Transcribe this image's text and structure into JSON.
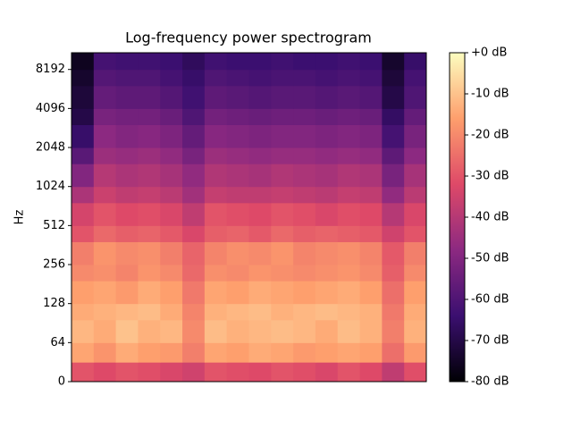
{
  "chart_data": {
    "type": "spectrogram",
    "title": "Log-frequency power spectrogram",
    "y_label": "Hz",
    "yscale": "symlog",
    "linthresh": 64,
    "ylim": [
      0,
      11025
    ],
    "yticks": [
      0,
      64,
      128,
      256,
      512,
      1024,
      2048,
      4096,
      8192
    ],
    "y_bins": [
      0,
      32,
      64,
      96,
      128,
      192,
      256,
      384,
      512,
      768,
      1024,
      1536,
      2048,
      3072,
      4096,
      6144,
      8192,
      11025
    ],
    "z": [
      [
        -30,
        -32,
        -30,
        -31,
        -33,
        -35,
        -30,
        -31,
        -32,
        -30,
        -31,
        -33,
        -30,
        -32,
        -38,
        -31
      ],
      [
        -15,
        -18,
        -14,
        -16,
        -17,
        -22,
        -15,
        -16,
        -14,
        -15,
        -17,
        -16,
        -15,
        -16,
        -25,
        -17
      ],
      [
        -12,
        -14,
        -10,
        -13,
        -12,
        -20,
        -11,
        -13,
        -12,
        -11,
        -12,
        -14,
        -11,
        -13,
        -22,
        -13
      ],
      [
        -14,
        -13,
        -12,
        -11,
        -14,
        -21,
        -13,
        -12,
        -11,
        -13,
        -12,
        -11,
        -12,
        -13,
        -23,
        -14
      ],
      [
        -16,
        -15,
        -17,
        -14,
        -16,
        -23,
        -15,
        -16,
        -14,
        -15,
        -16,
        -15,
        -14,
        -16,
        -25,
        -16
      ],
      [
        -20,
        -19,
        -21,
        -18,
        -20,
        -26,
        -19,
        -20,
        -18,
        -19,
        -20,
        -19,
        -18,
        -20,
        -28,
        -20
      ],
      [
        -22,
        -18,
        -20,
        -19,
        -22,
        -27,
        -21,
        -19,
        -20,
        -18,
        -21,
        -20,
        -19,
        -21,
        -29,
        -22
      ],
      [
        -30,
        -26,
        -28,
        -27,
        -29,
        -33,
        -28,
        -27,
        -29,
        -26,
        -28,
        -27,
        -28,
        -29,
        -35,
        -30
      ],
      [
        -34,
        -30,
        -32,
        -31,
        -33,
        -38,
        -30,
        -31,
        -32,
        -30,
        -31,
        -33,
        -31,
        -32,
        -40,
        -33
      ],
      [
        -42,
        -36,
        -38,
        -37,
        -39,
        -44,
        -37,
        -38,
        -38,
        -37,
        -38,
        -39,
        -37,
        -38,
        -47,
        -39
      ],
      [
        -50,
        -40,
        -42,
        -41,
        -43,
        -47,
        -41,
        -42,
        -43,
        -41,
        -42,
        -43,
        -41,
        -42,
        -52,
        -43
      ],
      [
        -58,
        -45,
        -46,
        -45,
        -47,
        -52,
        -45,
        -46,
        -47,
        -46,
        -46,
        -47,
        -46,
        -47,
        -57,
        -48
      ],
      [
        -65,
        -48,
        -50,
        -49,
        -51,
        -56,
        -49,
        -50,
        -51,
        -50,
        -50,
        -51,
        -50,
        -51,
        -62,
        -52
      ],
      [
        -70,
        -52,
        -53,
        -53,
        -55,
        -60,
        -53,
        -54,
        -55,
        -54,
        -54,
        -55,
        -54,
        -55,
        -66,
        -56
      ],
      [
        -72,
        -56,
        -57,
        -57,
        -59,
        -63,
        -57,
        -58,
        -59,
        -58,
        -58,
        -59,
        -58,
        -59,
        -70,
        -60
      ],
      [
        -74,
        -59,
        -60,
        -60,
        -62,
        -65,
        -60,
        -61,
        -62,
        -61,
        -61,
        -62,
        -61,
        -62,
        -72,
        -62
      ],
      [
        -76,
        -62,
        -63,
        -63,
        -64,
        -67,
        -63,
        -64,
        -64,
        -63,
        -64,
        -64,
        -63,
        -64,
        -74,
        -65
      ]
    ],
    "colormap": [
      "#000004",
      "#3b0f70",
      "#8c2981",
      "#de4968",
      "#fe9f6d",
      "#fcfdbf"
    ],
    "clim": [
      -80,
      0
    ],
    "cticks": [
      {
        "value": 0,
        "label": "+0 dB"
      },
      {
        "value": -10,
        "label": "-10 dB"
      },
      {
        "value": -20,
        "label": "-20 dB"
      },
      {
        "value": -30,
        "label": "-30 dB"
      },
      {
        "value": -40,
        "label": "-40 dB"
      },
      {
        "value": -50,
        "label": "-50 dB"
      },
      {
        "value": -60,
        "label": "-60 dB"
      },
      {
        "value": -70,
        "label": "-70 dB"
      },
      {
        "value": -80,
        "label": "-80 dB"
      }
    ]
  }
}
